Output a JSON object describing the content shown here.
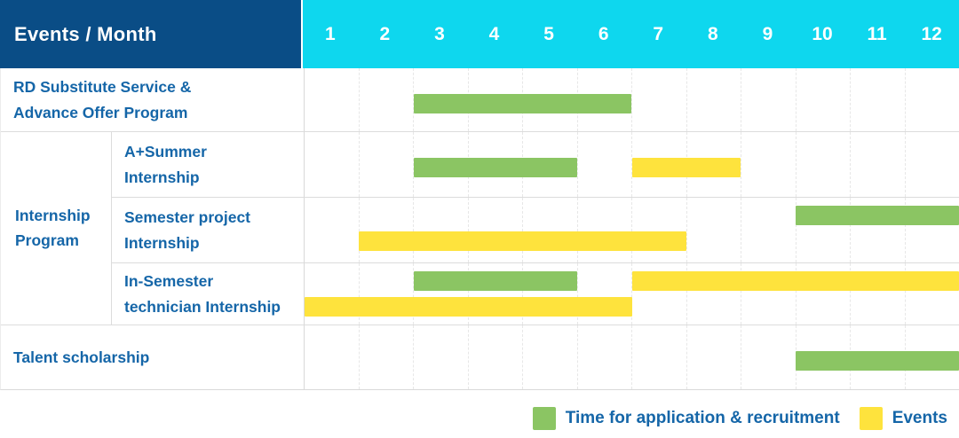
{
  "header": {
    "title": "Events / Month",
    "months": [
      "1",
      "2",
      "3",
      "4",
      "5",
      "6",
      "7",
      "8",
      "9",
      "10",
      "11",
      "12"
    ]
  },
  "colors": {
    "header_bg": "#0a4d86",
    "months_bg": "#0ed7ee",
    "header_text": "#ffffff",
    "label_text": "#1566a8",
    "application_green": "#8bc563",
    "event_yellow": "#fee33d",
    "grid_line": "#e7e7e7",
    "row_line": "#dcdcdc"
  },
  "legend": {
    "items": [
      {
        "type": "application",
        "label": "Time for application & recruitment"
      },
      {
        "type": "event",
        "label": "Events"
      }
    ]
  },
  "chart_data": {
    "type": "gantt",
    "x_unit": "month",
    "x_range": [
      1,
      12
    ],
    "bar_types": {
      "application": {
        "label": "Time for application & recruitment",
        "color": "#8bc563"
      },
      "event": {
        "label": "Events",
        "color": "#fee33d"
      }
    },
    "groups": [
      {
        "label": "Internship\nProgram",
        "row_start": 1,
        "row_end": 3
      }
    ],
    "rows": [
      {
        "label": "RD Substitute Service &\nAdvance Offer Program",
        "group": null,
        "bars": [
          {
            "type": "application",
            "start_month": 3,
            "end_month": 6,
            "track": 0
          }
        ]
      },
      {
        "label": "A+Summer\nInternship",
        "group": "Internship Program",
        "bars": [
          {
            "type": "application",
            "start_month": 3,
            "end_month": 5,
            "track": 0
          },
          {
            "type": "event",
            "start_month": 7,
            "end_month": 8,
            "track": 0
          }
        ]
      },
      {
        "label": "Semester project\nInternship",
        "group": "Internship Program",
        "bars": [
          {
            "type": "application",
            "start_month": 10,
            "end_month": 12,
            "track": 0
          },
          {
            "type": "event",
            "start_month": 2,
            "end_month": 7,
            "track": 1
          }
        ]
      },
      {
        "label": "In-Semester\ntechnician Internship",
        "group": "Internship Program",
        "bars": [
          {
            "type": "application",
            "start_month": 3,
            "end_month": 5,
            "track": 0
          },
          {
            "type": "event",
            "start_month": 7,
            "end_month": 12,
            "track": 0
          },
          {
            "type": "event",
            "start_month": 1,
            "end_month": 6,
            "track": 1
          }
        ]
      },
      {
        "label": "Talent scholarship",
        "group": null,
        "bars": [
          {
            "type": "application",
            "start_month": 10,
            "end_month": 12,
            "track": 0
          }
        ]
      }
    ]
  }
}
